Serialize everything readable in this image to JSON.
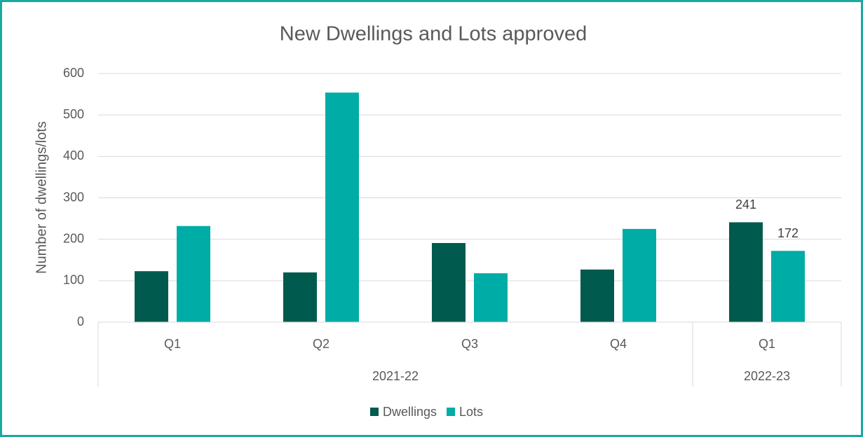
{
  "chart_data": {
    "type": "bar",
    "title": "New Dwellings and Lots approved",
    "y_label": "Number of dwellings/lots",
    "groups": [
      {
        "name": "2021-22",
        "categories": [
          "Q1",
          "Q2",
          "Q3",
          "Q4"
        ]
      },
      {
        "name": "2022-23",
        "categories": [
          "Q1"
        ]
      }
    ],
    "series": [
      {
        "name": "Dwellings",
        "color": "#005a4e",
        "values": [
          123,
          120,
          191,
          127,
          241
        ],
        "value_labels": [
          null,
          null,
          null,
          null,
          "241"
        ]
      },
      {
        "name": "Lots",
        "color": "#00aca6",
        "values": [
          232,
          554,
          118,
          225,
          172
        ],
        "value_labels": [
          null,
          null,
          null,
          null,
          "172"
        ]
      }
    ],
    "ylim": [
      0,
      600
    ],
    "yticks": [
      0,
      100,
      200,
      300,
      400,
      500,
      600
    ],
    "grid": true,
    "legend": "bottom"
  }
}
